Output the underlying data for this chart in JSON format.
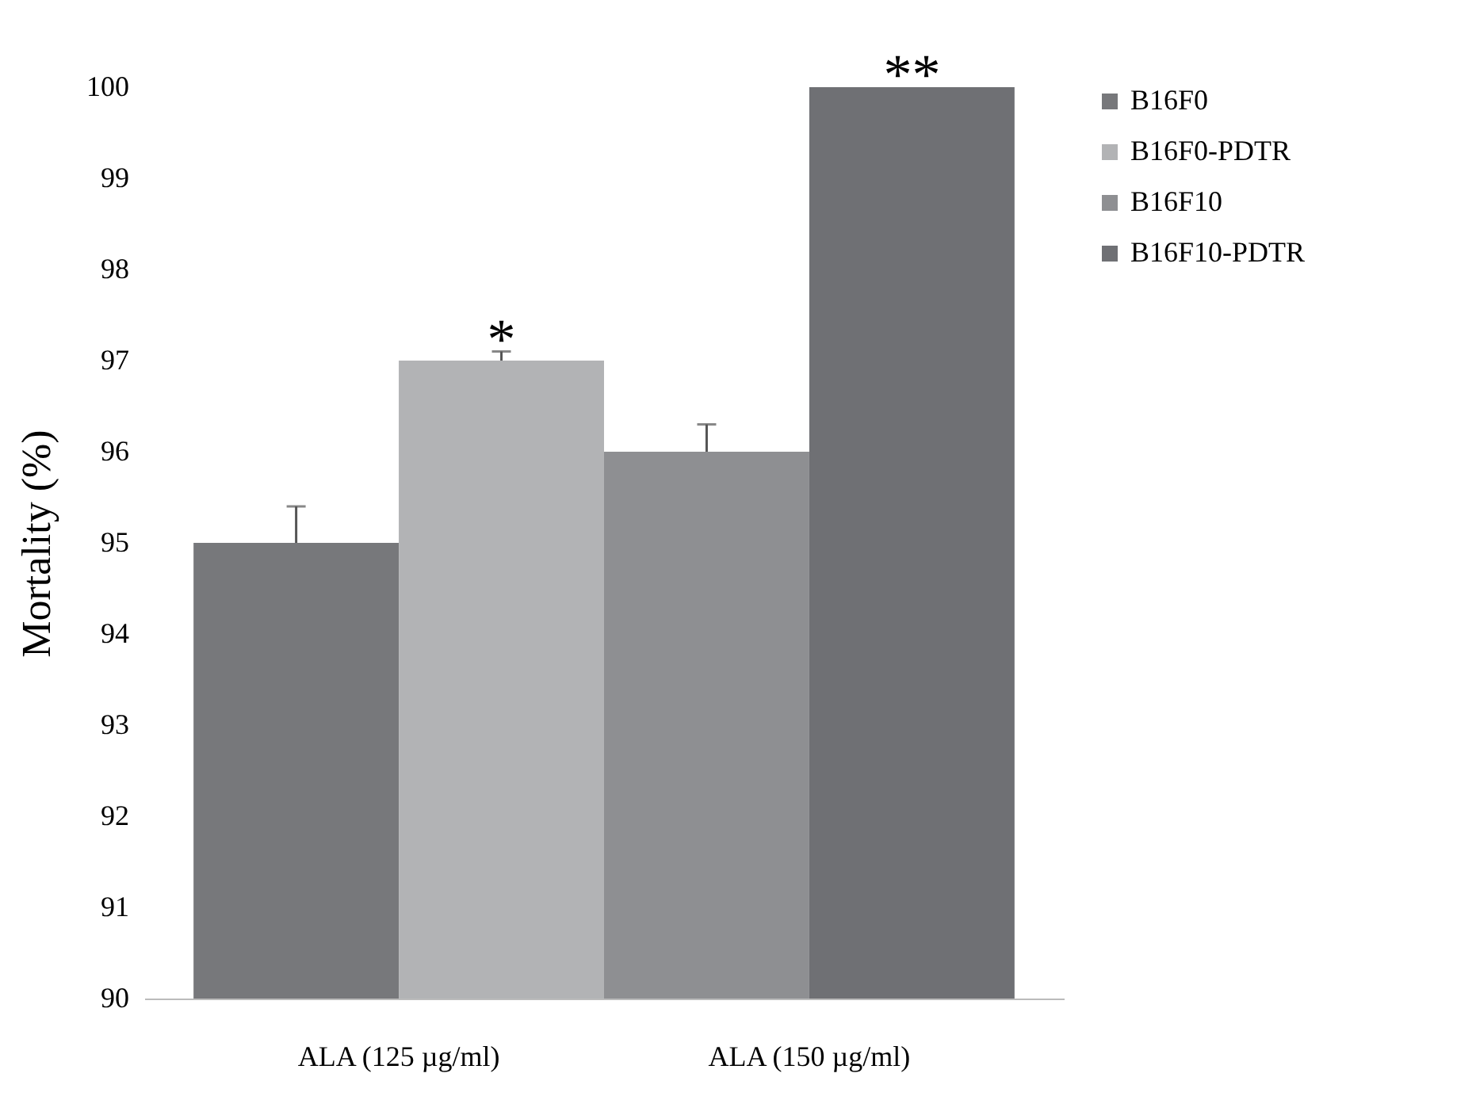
{
  "chart_data": {
    "type": "bar",
    "ylabel": "Mortality (%)",
    "categories": [
      "ALA (125 µg/ml)",
      "ALA (150 µg/ml)"
    ],
    "series": [
      {
        "name": "B16F0",
        "color": "#77787b",
        "values": [
          95,
          null
        ],
        "errors": [
          [
            95,
            95.4
          ],
          null
        ]
      },
      {
        "name": "B16F0-PDTR",
        "color": "#b2b3b5",
        "values": [
          97,
          null
        ],
        "errors": [
          [
            97,
            97.1
          ],
          null
        ]
      },
      {
        "name": "B16F10",
        "color": "#8e8f92",
        "values": [
          null,
          96
        ],
        "errors": [
          null,
          [
            96,
            96.3
          ]
        ]
      },
      {
        "name": "B16F10-PDTR",
        "color": "#6f7074",
        "values": [
          null,
          100
        ]
      }
    ],
    "ylim": [
      90,
      100
    ],
    "yticks": [
      90,
      91,
      92,
      93,
      94,
      95,
      96,
      97,
      98,
      99,
      100
    ],
    "grid": false,
    "legend": "right",
    "annotations": [
      "*",
      "**"
    ]
  }
}
